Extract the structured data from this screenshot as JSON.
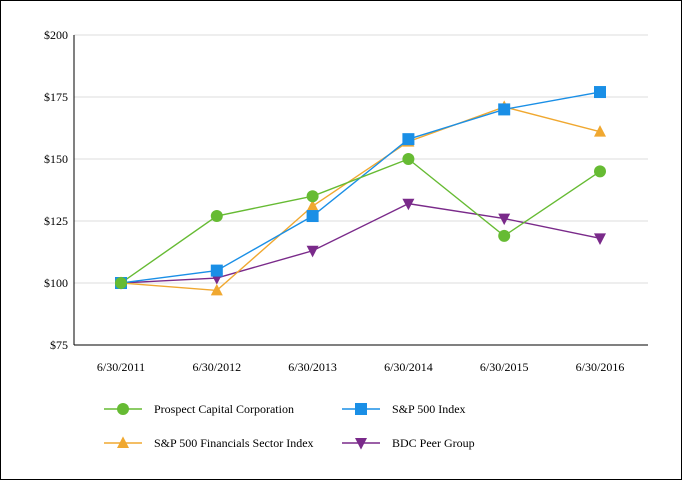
{
  "chart_data": {
    "type": "line",
    "title": "",
    "xlabel": "",
    "ylabel": "",
    "categories": [
      "6/30/2011",
      "6/30/2012",
      "6/30/2013",
      "6/30/2014",
      "6/30/2015",
      "6/30/2016"
    ],
    "ylim": [
      75,
      200
    ],
    "yticks": [
      75,
      100,
      125,
      150,
      175,
      200
    ],
    "ytick_labels": [
      "$75",
      "$100",
      "$125",
      "$150",
      "$175",
      "$200"
    ],
    "grid": "horizontal",
    "legend_position": "bottom",
    "series": [
      {
        "name": "Prospect Capital Corporation",
        "values": [
          100,
          127,
          135,
          150,
          119,
          145
        ],
        "color": "#66bb33",
        "marker": "circle"
      },
      {
        "name": "S&P 500 Index",
        "values": [
          100,
          105,
          127,
          158,
          170,
          177
        ],
        "color": "#1a8fe6",
        "marker": "square"
      },
      {
        "name": "S&P 500 Financials Sector Index",
        "values": [
          100,
          97,
          131,
          157,
          171,
          161
        ],
        "color": "#f0a830",
        "marker": "triangle-up"
      },
      {
        "name": "BDC Peer Group",
        "values": [
          100,
          102,
          113,
          132,
          126,
          118
        ],
        "color": "#7a2a8a",
        "marker": "triangle-down"
      }
    ]
  }
}
